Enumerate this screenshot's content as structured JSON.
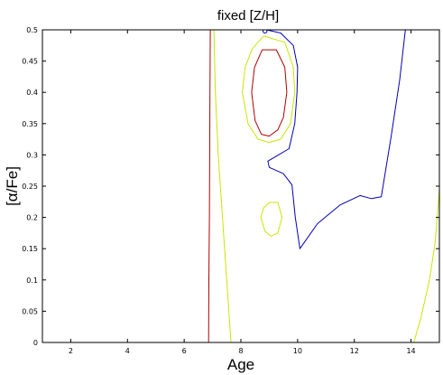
{
  "chart_data": {
    "type": "line",
    "title": "fixed [Z/H]",
    "xlabel": "Age",
    "ylabel": "[α/Fe]",
    "xlim": [
      1,
      15
    ],
    "ylim": [
      0,
      0.5
    ],
    "xticks": [
      2,
      4,
      6,
      8,
      10,
      12,
      14
    ],
    "yticks": [
      0,
      0.05,
      0.1,
      0.15,
      0.2,
      0.25,
      0.3,
      0.35,
      0.4,
      0.45,
      0.5
    ],
    "xtick_labels": [
      "2",
      "4",
      "6",
      "8",
      "10",
      "12",
      "14"
    ],
    "ytick_labels": [
      "0",
      "0.05",
      "0.1",
      "0.15",
      "0.2",
      "0.25",
      "0.3",
      "0.35",
      "0.4",
      "0.45",
      "0.5"
    ],
    "grid": false,
    "legend": "none",
    "contours": [
      {
        "id": "red-vertical",
        "color": "#b00000",
        "points": [
          [
            6.92,
            0.5
          ],
          [
            6.91,
            0.4
          ],
          [
            6.9,
            0.3
          ],
          [
            6.89,
            0.2
          ],
          [
            6.87,
            0.1
          ],
          [
            6.86,
            0
          ]
        ]
      },
      {
        "id": "red-oval",
        "color": "#b00000",
        "points": [
          [
            8.75,
            0.468
          ],
          [
            9.25,
            0.468
          ],
          [
            9.55,
            0.44
          ],
          [
            9.62,
            0.4
          ],
          [
            9.5,
            0.36
          ],
          [
            9.3,
            0.34
          ],
          [
            9.0,
            0.33
          ],
          [
            8.72,
            0.333
          ],
          [
            8.5,
            0.355
          ],
          [
            8.38,
            0.4
          ],
          [
            8.48,
            0.44
          ],
          [
            8.75,
            0.468
          ]
        ]
      },
      {
        "id": "green-vertical",
        "color": "#c8e600",
        "points": [
          [
            7.05,
            0.5
          ],
          [
            7.1,
            0.4
          ],
          [
            7.2,
            0.3
          ],
          [
            7.35,
            0.2
          ],
          [
            7.5,
            0.1
          ],
          [
            7.65,
            0
          ]
        ]
      },
      {
        "id": "green-oval",
        "color": "#c8e600",
        "points": [
          [
            8.8,
            0.49
          ],
          [
            9.55,
            0.48
          ],
          [
            9.85,
            0.44
          ],
          [
            9.9,
            0.4
          ],
          [
            9.75,
            0.35
          ],
          [
            9.4,
            0.325
          ],
          [
            9.0,
            0.32
          ],
          [
            8.6,
            0.325
          ],
          [
            8.25,
            0.35
          ],
          [
            8.05,
            0.4
          ],
          [
            8.15,
            0.44
          ],
          [
            8.4,
            0.47
          ],
          [
            8.8,
            0.49
          ]
        ]
      },
      {
        "id": "green-small-oval",
        "color": "#c8e600",
        "points": [
          [
            9.0,
            0.224
          ],
          [
            9.3,
            0.224
          ],
          [
            9.45,
            0.2
          ],
          [
            9.3,
            0.175
          ],
          [
            9.05,
            0.17
          ],
          [
            8.85,
            0.178
          ],
          [
            8.7,
            0.2
          ],
          [
            8.8,
            0.215
          ],
          [
            9.0,
            0.224
          ]
        ]
      },
      {
        "id": "green-right",
        "color": "#c8e600",
        "points": [
          [
            15.0,
            0.245
          ],
          [
            14.85,
            0.16
          ],
          [
            14.65,
            0.1
          ],
          [
            14.35,
            0.04
          ],
          [
            14.1,
            0
          ]
        ]
      },
      {
        "id": "blue-contour",
        "color": "#0000b4",
        "points": [
          [
            8.9,
            0.5
          ],
          [
            9.4,
            0.495
          ],
          [
            9.85,
            0.475
          ],
          [
            10.0,
            0.44
          ],
          [
            9.98,
            0.4
          ],
          [
            9.9,
            0.35
          ],
          [
            9.7,
            0.31
          ],
          [
            9.25,
            0.298
          ],
          [
            8.95,
            0.29
          ],
          [
            9.0,
            0.28
          ],
          [
            9.5,
            0.27
          ],
          [
            9.8,
            0.252
          ],
          [
            9.92,
            0.2
          ],
          [
            10.08,
            0.15
          ],
          [
            10.7,
            0.19
          ],
          [
            11.5,
            0.22
          ],
          [
            12.2,
            0.235
          ],
          [
            12.6,
            0.23
          ],
          [
            12.95,
            0.233
          ],
          [
            13.3,
            0.33
          ],
          [
            13.6,
            0.42
          ],
          [
            13.8,
            0.5
          ]
        ]
      }
    ],
    "markers": [
      {
        "id": "small-circle",
        "color": "#0000b4",
        "x": 8.85,
        "y": 0.498
      }
    ]
  }
}
